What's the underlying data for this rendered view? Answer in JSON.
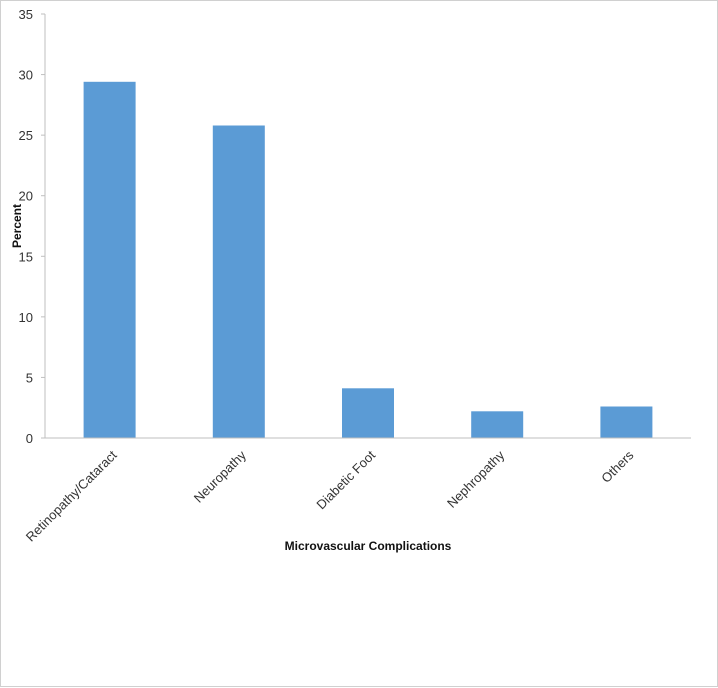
{
  "chart_data": {
    "type": "bar",
    "categories": [
      "Retinopathy/Cataract",
      "Neuropathy",
      "Diabetic Foot",
      "Nephropathy",
      "Others"
    ],
    "values": [
      29.4,
      25.8,
      4.1,
      2.2,
      2.6
    ],
    "xlabel": "Microvascular Complications",
    "ylabel": "Percent",
    "ylim": [
      0,
      35
    ],
    "yticks": [
      "0",
      "5",
      "10",
      "15",
      "20",
      "25",
      "30",
      "35"
    ],
    "grid": false,
    "legend": "none",
    "bar_color": "#5b9bd5",
    "axis_color": "#bfbfbf"
  }
}
